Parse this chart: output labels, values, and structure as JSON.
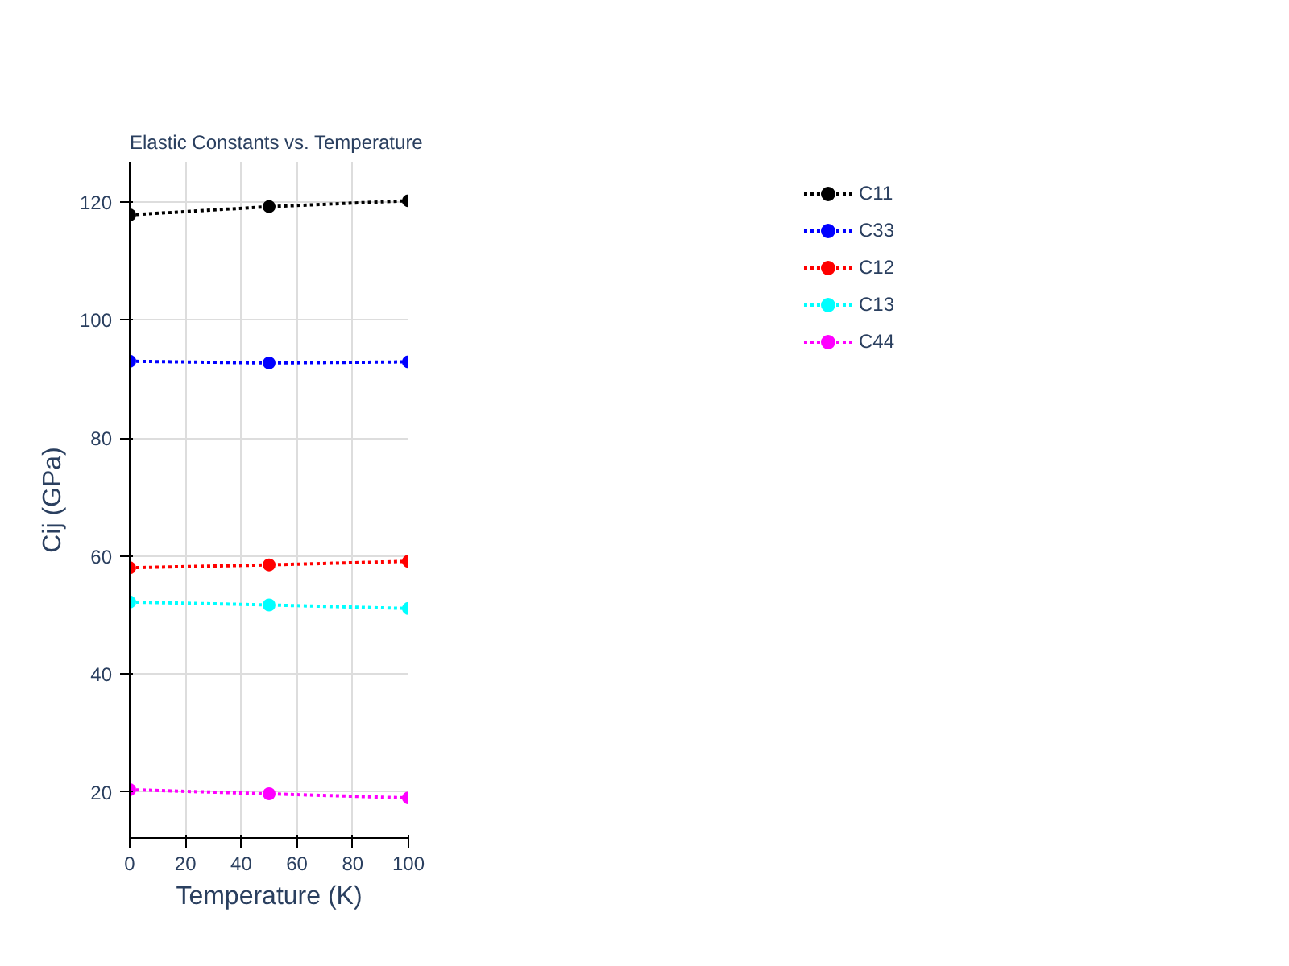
{
  "chart_data": {
    "type": "line",
    "title": "Elastic Constants vs. Temperature",
    "xlabel": "Temperature (K)",
    "ylabel": "Cij (GPa)",
    "x": [
      0,
      50,
      100
    ],
    "series": [
      {
        "name": "C11",
        "color": "#000000",
        "values": [
          117.8,
          119.2,
          120.2
        ]
      },
      {
        "name": "C33",
        "color": "#0000ff",
        "values": [
          93.0,
          92.7,
          92.9
        ]
      },
      {
        "name": "C12",
        "color": "#ff0000",
        "values": [
          58.0,
          58.5,
          59.1
        ]
      },
      {
        "name": "C13",
        "color": "#00ffff",
        "values": [
          52.2,
          51.7,
          51.1
        ]
      },
      {
        "name": "C44",
        "color": "#ff00ff",
        "values": [
          20.4,
          19.7,
          19.0
        ]
      }
    ],
    "xlim": [
      0,
      100
    ],
    "ylim": [
      12.2,
      126.8
    ],
    "xticks": [
      0,
      20,
      40,
      60,
      80,
      100
    ],
    "yticks": [
      20,
      40,
      60,
      80,
      100,
      120
    ],
    "grid": true,
    "legend": "top right",
    "marker": "circle",
    "line_style": "dotted"
  }
}
